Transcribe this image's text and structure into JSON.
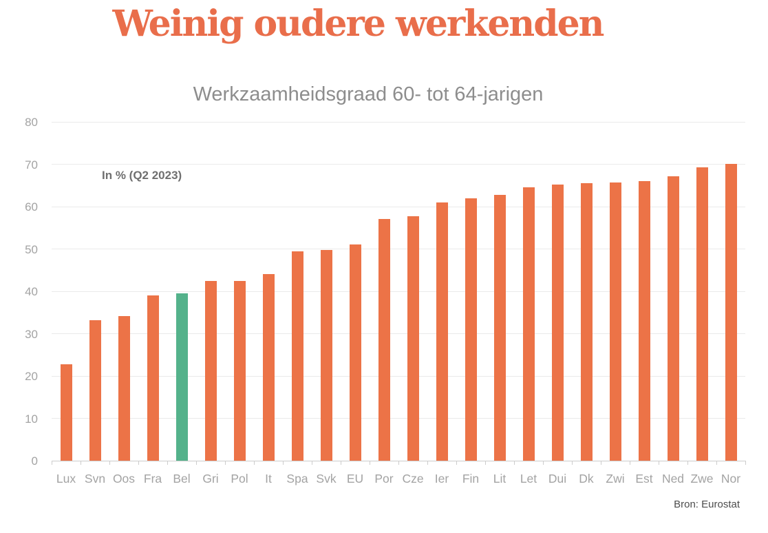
{
  "chart_data": {
    "type": "bar",
    "title": "Weinig oudere werkenden",
    "subtitle": "Werkzaamheidsgraad 60- tot 64-jarigen",
    "annotation": "In % (Q2 2023)",
    "source": "Bron: Eurostat",
    "categories": [
      "Lux",
      "Svn",
      "Oos",
      "Fra",
      "Bel",
      "Gri",
      "Pol",
      "It",
      "Spa",
      "Svk",
      "EU",
      "Por",
      "Cze",
      "Ier",
      "Fin",
      "Lit",
      "Let",
      "Dui",
      "Dk",
      "Zwi",
      "Est",
      "Ned",
      "Zwe",
      "Nor"
    ],
    "values": [
      22.8,
      33.1,
      34.1,
      39.1,
      39.5,
      42.5,
      42.5,
      44.0,
      49.5,
      49.8,
      51.0,
      57.0,
      57.7,
      60.9,
      61.9,
      62.8,
      64.5,
      65.2,
      65.5,
      65.7,
      66.0,
      67.2,
      69.2,
      70.1
    ],
    "highlight_category": "Bel",
    "colors": {
      "bar": "#EC7347",
      "highlight": "#54B28B",
      "title": "#E96E4B",
      "gridline": "#EAEAEA",
      "axis": "#CCCCCC"
    },
    "xlabel": "",
    "ylabel": "",
    "ylim": [
      0,
      80
    ],
    "yticks": [
      0,
      10,
      20,
      30,
      40,
      50,
      60,
      70,
      80
    ],
    "grid": true,
    "legend": false
  }
}
